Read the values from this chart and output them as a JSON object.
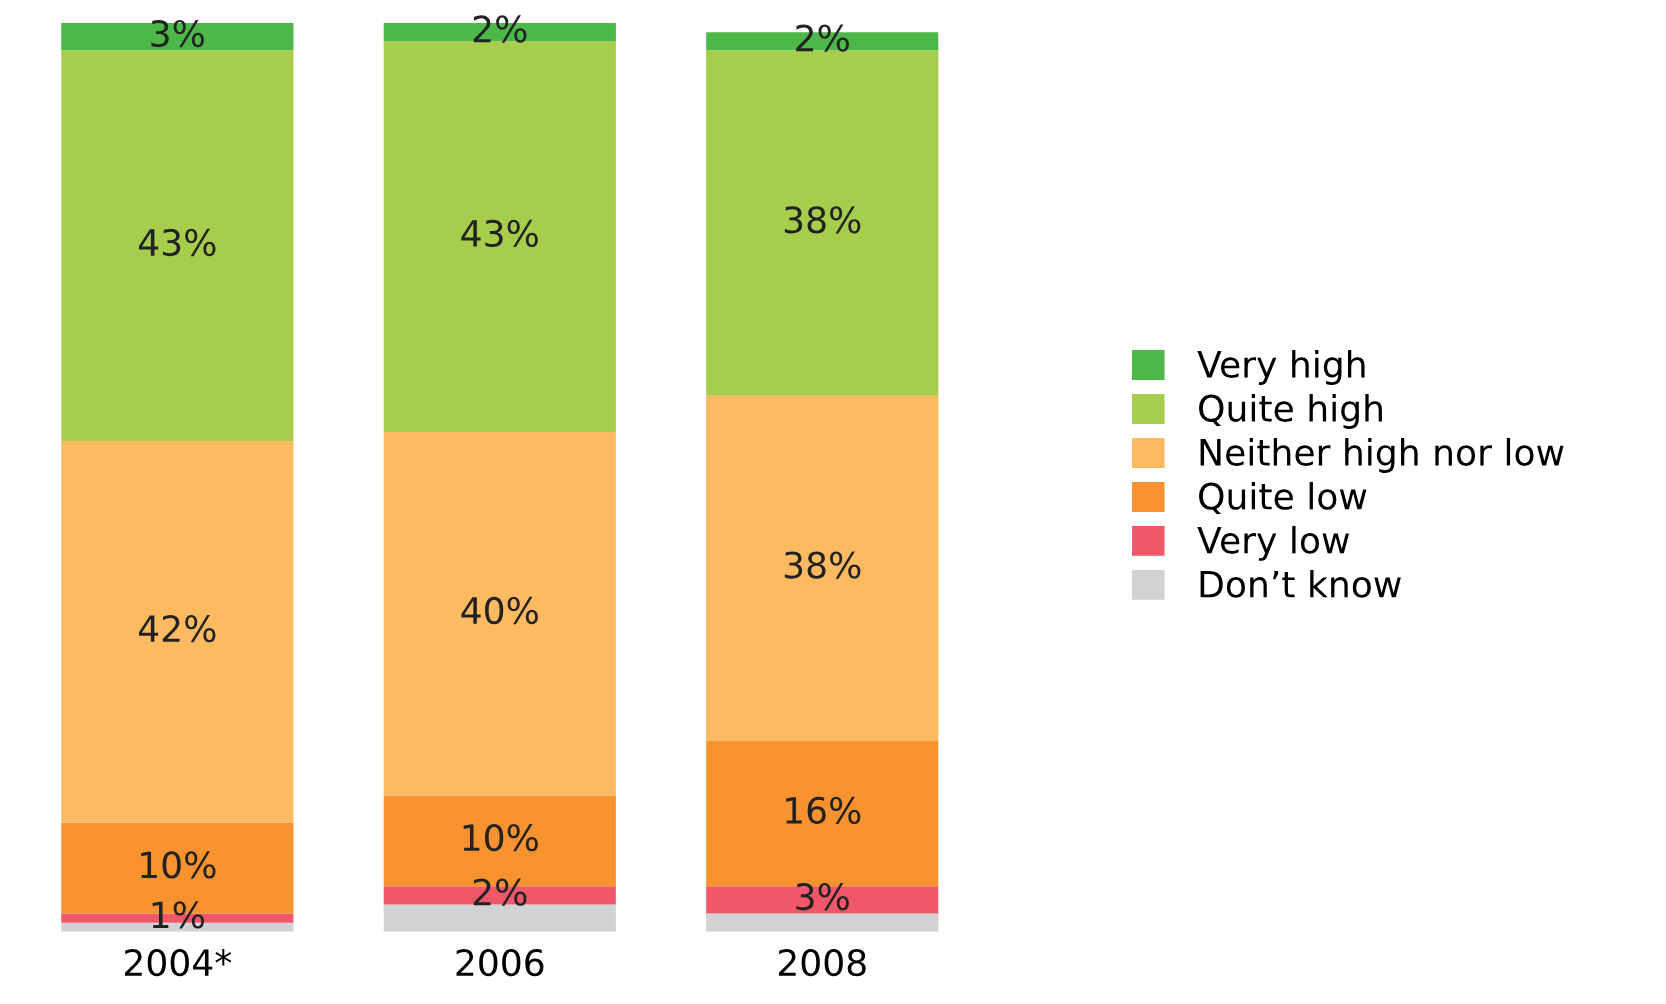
{
  "chart_data": {
    "type": "bar",
    "stacked": true,
    "categories": [
      "2004*",
      "2006",
      "2008"
    ],
    "series": [
      {
        "name": "Don’t know",
        "color": "#d1d2d4",
        "values": [
          1,
          3,
          2
        ],
        "value_labels": [
          null,
          null,
          null
        ]
      },
      {
        "name": "Very low",
        "color": "#f0586a",
        "values": [
          1,
          2,
          3
        ],
        "value_labels": [
          "1%",
          "2%",
          "3%"
        ]
      },
      {
        "name": "Quite low",
        "color": "#f7922f",
        "values": [
          10,
          10,
          16
        ],
        "value_labels": [
          "10%",
          "10%",
          "16%"
        ]
      },
      {
        "name": "Neither high nor low",
        "color": "#fdba60",
        "values": [
          42,
          40,
          38
        ],
        "value_labels": [
          "42%",
          "40%",
          "38%"
        ]
      },
      {
        "name": "Quite high",
        "color": "#a6ce4c",
        "values": [
          43,
          43,
          38
        ],
        "value_labels": [
          "43%",
          "43%",
          "38%"
        ]
      },
      {
        "name": "Very high",
        "color": "#4cb848",
        "values": [
          3,
          2,
          2
        ],
        "value_labels": [
          "3%",
          "2%",
          "2%"
        ]
      }
    ],
    "legend": "right",
    "grid": false
  }
}
